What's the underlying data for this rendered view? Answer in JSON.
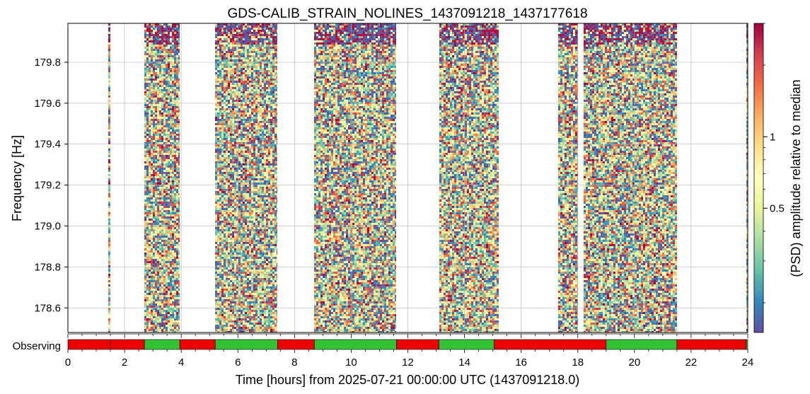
{
  "chart_data": {
    "type": "heatmap",
    "title": "GDS-CALIB_STRAIN_NOLINES_1437091218_1437177618",
    "xlabel": "Time [hours] from 2025-07-21 00:00:00 UTC (1437091218.0)",
    "ylabel": "Frequency [Hz]",
    "colorbar_label": "(PSD) amplitude relative to median",
    "xlim": [
      0,
      24
    ],
    "ylim": [
      178.48,
      179.99
    ],
    "x_ticks": [
      "0",
      "2",
      "4",
      "6",
      "8",
      "10",
      "12",
      "14",
      "16",
      "18",
      "20",
      "22",
      "24"
    ],
    "y_ticks": [
      "178.6",
      "178.8",
      "179.0",
      "179.2",
      "179.4",
      "179.6",
      "179.8"
    ],
    "y_tick_values": [
      178.6,
      178.8,
      179.0,
      179.2,
      179.4,
      179.6,
      179.8
    ],
    "colorbar": {
      "scale": "log",
      "range": [
        0.15,
        3.0
      ],
      "ticks": [
        "0.5",
        "1"
      ],
      "tick_values": [
        0.5,
        1.0
      ],
      "colormap": "Spectral_r",
      "colors": [
        "#5e4fa2",
        "#3288bd",
        "#66c2a5",
        "#abdda4",
        "#e6f598",
        "#ffffbf",
        "#fee08b",
        "#fdae61",
        "#f46d43",
        "#d53e4f",
        "#9e0142"
      ]
    },
    "data_segments": [
      {
        "start": 1.42,
        "end": 1.5
      },
      {
        "start": 2.7,
        "end": 3.95
      },
      {
        "start": 5.2,
        "end": 7.4
      },
      {
        "start": 8.7,
        "end": 11.6
      },
      {
        "start": 13.1,
        "end": 15.2
      },
      {
        "start": 17.3,
        "end": 18.0
      },
      {
        "start": 18.2,
        "end": 21.5
      },
      {
        "start": 23.95,
        "end": 24.0
      }
    ],
    "state_bar": {
      "label": "Observing",
      "on_color": "#33c233",
      "off_color": "#ee0000",
      "segments": [
        {
          "start": 0.0,
          "end": 1.5,
          "state": "off"
        },
        {
          "start": 1.5,
          "end": 2.7,
          "state": "off"
        },
        {
          "start": 2.7,
          "end": 3.95,
          "state": "on"
        },
        {
          "start": 3.95,
          "end": 5.2,
          "state": "off"
        },
        {
          "start": 5.2,
          "end": 7.4,
          "state": "on"
        },
        {
          "start": 7.4,
          "end": 8.7,
          "state": "off"
        },
        {
          "start": 8.7,
          "end": 11.6,
          "state": "on"
        },
        {
          "start": 11.6,
          "end": 13.1,
          "state": "off"
        },
        {
          "start": 13.1,
          "end": 15.05,
          "state": "on"
        },
        {
          "start": 15.05,
          "end": 19.0,
          "state": "off"
        },
        {
          "start": 19.0,
          "end": 21.5,
          "state": "on"
        },
        {
          "start": 21.5,
          "end": 23.95,
          "state": "off"
        },
        {
          "start": 23.95,
          "end": 24.0,
          "state": "on"
        }
      ]
    }
  }
}
